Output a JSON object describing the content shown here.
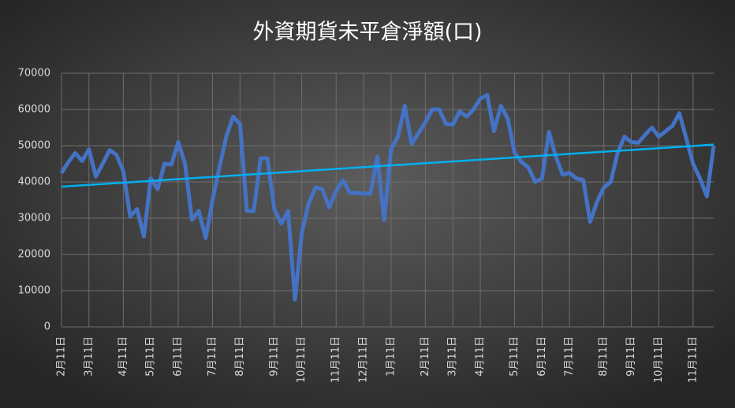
{
  "chart_data": {
    "type": "line",
    "title": "外資期貨未平倉淨額(口)",
    "categories": [
      "2月11日",
      null,
      null,
      null,
      "3月11日",
      null,
      null,
      null,
      null,
      "4月11日",
      null,
      null,
      null,
      "5月11日",
      null,
      null,
      null,
      "6月11日",
      null,
      null,
      null,
      null,
      "7月11日",
      null,
      null,
      null,
      "8月11日",
      null,
      null,
      null,
      null,
      "9月11日",
      null,
      null,
      null,
      "10月11日",
      null,
      null,
      null,
      null,
      "11月11日",
      null,
      null,
      null,
      "12月11日",
      null,
      null,
      null,
      "1月11日",
      null,
      null,
      null,
      null,
      "2月11日",
      null,
      null,
      null,
      "3月11日",
      null,
      null,
      null,
      "4月11日",
      null,
      null,
      null,
      null,
      "5月11日",
      null,
      null,
      null,
      "6月11日",
      null,
      null,
      null,
      "7月11日",
      null,
      null,
      null,
      null,
      "8月11日",
      null,
      null,
      null,
      "9月11日",
      null,
      null,
      null,
      "10月11日",
      null,
      null,
      null,
      null,
      "11月11日",
      null,
      null,
      null
    ],
    "values": [
      42500,
      45500,
      48000,
      45800,
      49000,
      41500,
      45000,
      48800,
      47500,
      43000,
      30500,
      32500,
      25000,
      41000,
      38000,
      45000,
      44800,
      51000,
      45000,
      29500,
      32000,
      24500,
      35000,
      44000,
      52500,
      58000,
      56000,
      32000,
      32000,
      46500,
      46500,
      32500,
      28500,
      32000,
      7500,
      26000,
      34000,
      38500,
      38000,
      33000,
      37500,
      40500,
      37000,
      37000,
      36800,
      36800,
      47000,
      29500,
      49000,
      52500,
      61000,
      50500,
      53500,
      56500,
      60000,
      60000,
      56000,
      55800,
      59500,
      58000,
      60000,
      63000,
      64000,
      54000,
      61000,
      57500,
      48000,
      45500,
      44000,
      40000,
      41000,
      53800,
      47000,
      42000,
      42500,
      41000,
      40500,
      29000,
      34500,
      38500,
      40000,
      48000,
      52500,
      51000,
      50800,
      53000,
      55000,
      52500,
      54000,
      55500,
      59000,
      52000,
      45000,
      41000,
      36000,
      50000
    ],
    "color": "#4472c4",
    "trendline": {
      "color": "#00b0f0",
      "values": [
        38700,
        50300
      ]
    },
    "ylim": [
      0,
      70000
    ],
    "yticks": [
      0,
      10000,
      20000,
      30000,
      40000,
      50000,
      60000,
      70000
    ],
    "grid": true
  }
}
